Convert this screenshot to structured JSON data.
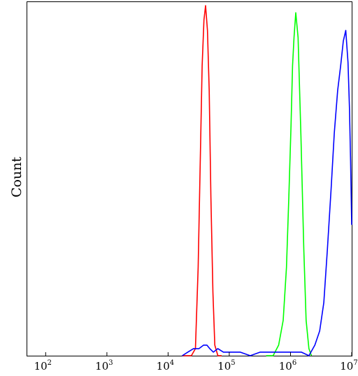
{
  "chart_data": {
    "type": "line",
    "title": "",
    "xlabel": "",
    "ylabel": "Count",
    "x_scale": "log",
    "xlim": [
      50,
      10000000
    ],
    "ylim": [
      0,
      100
    ],
    "grid": false,
    "legend": "none",
    "x_ticks": [
      {
        "value": 100,
        "base": "10",
        "exp": "2"
      },
      {
        "value": 1000,
        "base": "10",
        "exp": "3"
      },
      {
        "value": 10000,
        "base": "10",
        "exp": "4"
      },
      {
        "value": 100000,
        "base": "10",
        "exp": "5"
      },
      {
        "value": 1000000,
        "base": "10",
        "exp": "6"
      },
      {
        "value": 10000000,
        "base": "10",
        "exp": "7"
      }
    ],
    "series": [
      {
        "color": "#ff0000",
        "x": [
          17000,
          24000,
          28000,
          31000,
          33500,
          36000,
          38500,
          41000,
          44000,
          47000,
          50000,
          54000,
          58000,
          65000,
          75000
        ],
        "y": [
          0,
          0,
          2,
          25,
          55,
          82,
          95,
          99,
          92,
          75,
          45,
          18,
          3,
          0,
          0
        ]
      },
      {
        "color": "#00ff00",
        "x": [
          400000,
          520000,
          640000,
          760000,
          860000,
          940000,
          1020000,
          1080000,
          1140000,
          1220000,
          1330000,
          1480000,
          1650000,
          1800000,
          2000000,
          2200000
        ],
        "y": [
          0,
          0,
          3,
          10,
          25,
          45,
          65,
          82,
          90,
          97,
          90,
          62,
          30,
          10,
          2,
          0
        ]
      },
      {
        "color": "#0000ff",
        "x": [
          17000,
          21000,
          26000,
          32000,
          38000,
          43000,
          48000,
          55000,
          65000,
          80000,
          100000,
          150000,
          220000,
          320000,
          470000,
          680000,
          1000000,
          1500000,
          2000000,
          2500000,
          3000000,
          3500000,
          4000000,
          4600000,
          5200000,
          5900000,
          6600000,
          7300000,
          8000000,
          8700000,
          9200000,
          9600000,
          10000000
        ],
        "y": [
          0,
          1,
          2,
          2,
          3,
          3,
          2,
          1,
          2,
          1,
          1,
          1,
          0,
          1,
          1,
          1,
          1,
          1,
          0,
          3,
          7,
          15,
          30,
          47,
          63,
          75,
          82,
          89,
          92,
          83,
          70,
          55,
          37
        ]
      }
    ]
  }
}
